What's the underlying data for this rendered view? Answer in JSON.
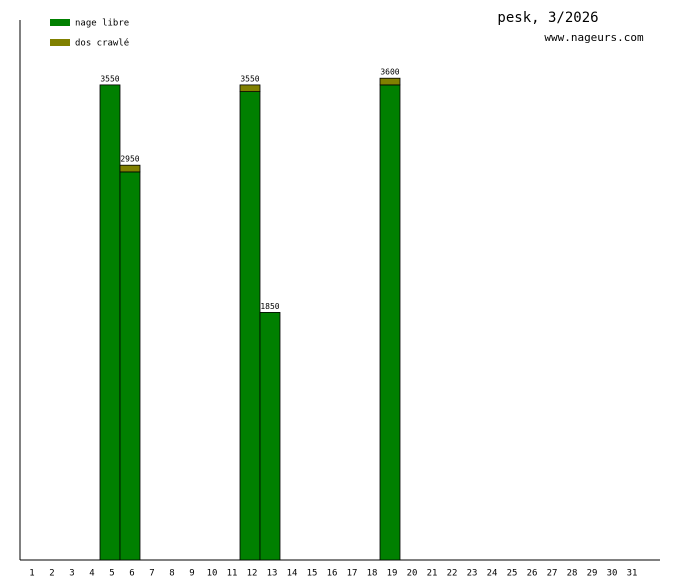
{
  "chart_data": {
    "type": "stacked_bar",
    "title": "pesk, 3/2026",
    "subtitle": "www.nageurs.com",
    "categories": [
      "1",
      "2",
      "3",
      "4",
      "5",
      "6",
      "7",
      "8",
      "9",
      "10",
      "11",
      "12",
      "13",
      "14",
      "15",
      "16",
      "17",
      "18",
      "19",
      "20",
      "21",
      "22",
      "23",
      "24",
      "25",
      "26",
      "27",
      "28",
      "29",
      "30",
      "31"
    ],
    "series": [
      {
        "name": "nage libre",
        "color": "#008000",
        "values": [
          null,
          null,
          null,
          null,
          3550,
          2900,
          null,
          null,
          null,
          null,
          null,
          3500,
          1850,
          null,
          null,
          null,
          null,
          null,
          3550,
          null,
          null,
          null,
          null,
          null,
          null,
          null,
          null,
          null,
          null,
          null,
          null
        ]
      },
      {
        "name": "dos crawlé",
        "color": "#808000",
        "values": [
          null,
          null,
          null,
          null,
          null,
          50,
          null,
          null,
          null,
          null,
          null,
          50,
          null,
          null,
          null,
          null,
          null,
          null,
          50,
          null,
          null,
          null,
          null,
          null,
          null,
          null,
          null,
          null,
          null,
          null,
          null
        ]
      }
    ],
    "value_labels": [
      null,
      null,
      null,
      null,
      "3550",
      "2950",
      null,
      null,
      null,
      null,
      null,
      "3550",
      "1850",
      null,
      null,
      null,
      null,
      null,
      "3600",
      null,
      null,
      null,
      null,
      null,
      null,
      null,
      null,
      null,
      null,
      null,
      null
    ],
    "ylim": [
      0,
      4035
    ]
  }
}
